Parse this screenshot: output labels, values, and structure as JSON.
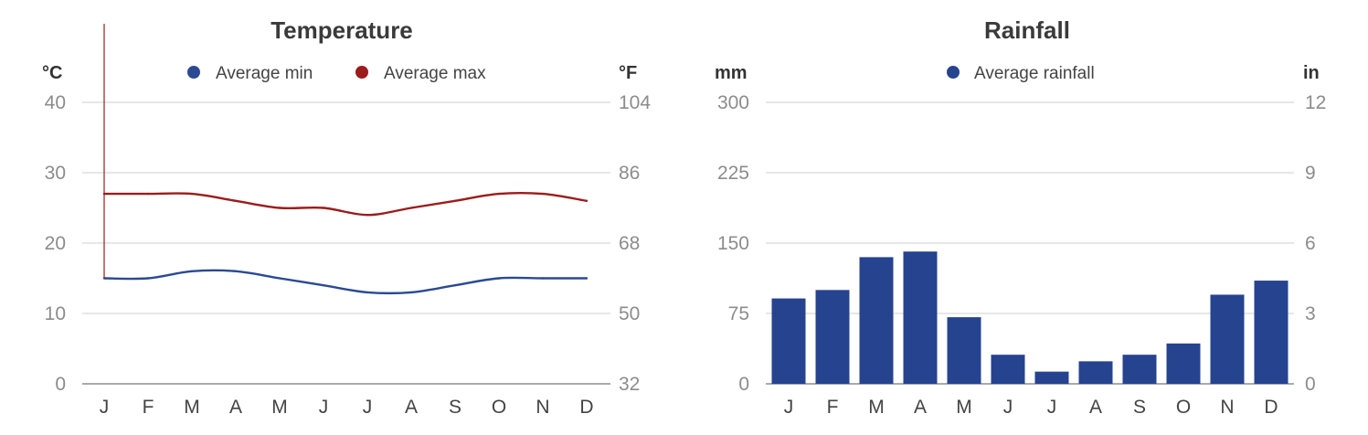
{
  "chart_data": [
    {
      "type": "line",
      "title": "Temperature",
      "ylabel_left": "°C",
      "ylabel_right": "°F",
      "categories": [
        "J",
        "F",
        "M",
        "A",
        "M",
        "J",
        "J",
        "A",
        "S",
        "O",
        "N",
        "D"
      ],
      "series": [
        {
          "name": "Average min",
          "color": "#2b4a92",
          "values": [
            15,
            15,
            16,
            16,
            15,
            14,
            13,
            13,
            14,
            15,
            15,
            15
          ]
        },
        {
          "name": "Average max",
          "color": "#9b1c1c",
          "values": [
            27,
            27,
            27,
            26,
            25,
            25,
            24,
            25,
            26,
            27,
            27,
            26
          ]
        }
      ],
      "ylim": [
        0,
        40
      ],
      "yticks_left": [
        "0",
        "10",
        "20",
        "30",
        "40"
      ],
      "yticks_right": [
        "32",
        "50",
        "68",
        "86",
        "104"
      ],
      "grid": true,
      "legend": "top-center"
    },
    {
      "type": "bar",
      "title": "Rainfall",
      "ylabel_left": "mm",
      "ylabel_right": "in",
      "categories": [
        "J",
        "F",
        "M",
        "A",
        "M",
        "J",
        "J",
        "A",
        "S",
        "O",
        "N",
        "D"
      ],
      "series": [
        {
          "name": "Average rainfall",
          "color": "#26438f",
          "values": [
            91,
            100,
            135,
            141,
            71,
            31,
            13,
            24,
            31,
            43,
            95,
            110
          ]
        }
      ],
      "ylim": [
        0,
        300
      ],
      "yticks_left": [
        "0",
        "75",
        "150",
        "225",
        "300"
      ],
      "yticks_right": [
        "0",
        "3",
        "6",
        "9",
        "12"
      ],
      "grid": true,
      "legend": "top-center"
    }
  ]
}
